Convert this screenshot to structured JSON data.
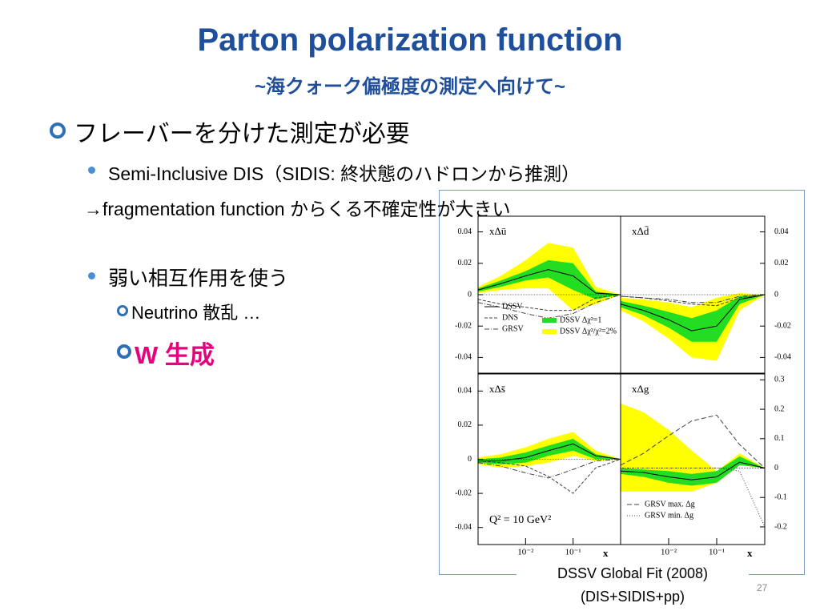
{
  "slide": {
    "title": "Parton polarization function",
    "subtitle": "~海クォーク偏極度の測定へ向けて~",
    "bullet_1": "フレーバーを分けた測定が必要",
    "bullet_1_1": "Semi-Inclusive DIS（SIDIS: 終状態のハドロンから推測）",
    "bullet_1_2": "→fragmentation function からくる不確定性が大きい",
    "bullet_2": "弱い相互作用を使う",
    "bullet_2_1": "Neutrino 散乱 …",
    "bullet_2_2": "W 生成",
    "caption_1": "DSSV Global Fit (2008)",
    "caption_2": "(DIS+SIDIS+pp)",
    "page_number": "27"
  },
  "chart_data": [
    {
      "type": "line",
      "label": "xΔū",
      "log_x": true,
      "x": [
        0.001,
        0.003,
        0.01,
        0.03,
        0.1,
        0.3,
        1
      ],
      "xlim": [
        0.001,
        1
      ],
      "xticks": [],
      "ylim": [
        -0.05,
        0.05
      ],
      "yticks": [
        0.04,
        0.02,
        0,
        -0.02,
        -0.04
      ],
      "bands": [
        {
          "name": "DSSV Δχ²/χ²=2%",
          "color": "#ffff00",
          "lower": [
            0.001,
            0.003,
            0.004,
            0.004,
            -0.01,
            -0.006,
            0
          ],
          "upper": [
            0.005,
            0.012,
            0.022,
            0.033,
            0.03,
            0.005,
            0
          ]
        },
        {
          "name": "DSSV Δχ²=1",
          "color": "#22dd22",
          "lower": [
            0.002,
            0.005,
            0.009,
            0.011,
            0.003,
            -0.003,
            0
          ],
          "upper": [
            0.004,
            0.009,
            0.015,
            0.022,
            0.02,
            0.002,
            0
          ]
        }
      ],
      "series": [
        {
          "name": "DSSV",
          "color": "#000000",
          "dash": "none",
          "values": [
            0.003,
            0.007,
            0.012,
            0.016,
            0.012,
            0.001,
            0
          ]
        },
        {
          "name": "DNS",
          "color": "#444444",
          "dash": "4 2",
          "values": [
            -0.003,
            -0.006,
            -0.008,
            -0.01,
            -0.01,
            -0.002,
            0
          ]
        },
        {
          "name": "GRSV",
          "color": "#444444",
          "dash": "6 2 1 2",
          "values": [
            -0.005,
            -0.008,
            -0.012,
            -0.015,
            -0.012,
            -0.005,
            0
          ]
        }
      ]
    },
    {
      "type": "line",
      "label": "xΔd̄",
      "log_x": true,
      "x": [
        0.001,
        0.003,
        0.01,
        0.03,
        0.1,
        0.3,
        1
      ],
      "xlim": [
        0.001,
        1
      ],
      "xticks": [],
      "ylim": [
        -0.05,
        0.05
      ],
      "yticks": [
        0.04,
        0.02,
        0,
        -0.02,
        -0.04
      ],
      "bands": [
        {
          "color": "#ffff00",
          "lower": [
            -0.01,
            -0.017,
            -0.028,
            -0.04,
            -0.042,
            -0.01,
            0
          ],
          "upper": [
            -0.002,
            -0.003,
            -0.005,
            -0.008,
            -0.002,
            0.001,
            0
          ]
        },
        {
          "color": "#22dd22",
          "lower": [
            -0.008,
            -0.013,
            -0.021,
            -0.03,
            -0.03,
            -0.006,
            0
          ],
          "upper": [
            -0.004,
            -0.007,
            -0.011,
            -0.015,
            -0.01,
            -0.001,
            0
          ]
        }
      ],
      "series": [
        {
          "color": "#000000",
          "dash": "none",
          "values": [
            -0.006,
            -0.01,
            -0.016,
            -0.023,
            -0.02,
            -0.003,
            0
          ]
        },
        {
          "color": "#444444",
          "dash": "4 2",
          "values": [
            -0.001,
            -0.002,
            -0.004,
            -0.006,
            -0.007,
            -0.002,
            0
          ]
        },
        {
          "color": "#444444",
          "dash": "6 2 1 2",
          "values": [
            -0.001,
            -0.002,
            -0.003,
            -0.005,
            -0.005,
            -0.001,
            0
          ]
        }
      ]
    },
    {
      "type": "line",
      "label": "xΔs̄",
      "log_x": true,
      "annotation": "Q² = 10 GeV²",
      "xlabel": "x",
      "x": [
        0.001,
        0.003,
        0.01,
        0.03,
        0.1,
        0.3,
        1
      ],
      "xlim": [
        0.001,
        1
      ],
      "xticks": [
        {
          "value": 0.01,
          "label": "10⁻²"
        },
        {
          "value": 0.1,
          "label": "10⁻¹"
        }
      ],
      "ylim": [
        -0.05,
        0.05
      ],
      "yticks": [
        0.04,
        0.02,
        0,
        -0.02,
        -0.04
      ],
      "bands": [
        {
          "color": "#ffff00",
          "lower": [
            -0.003,
            -0.005,
            -0.004,
            -0.002,
            0.002,
            -0.001,
            0
          ],
          "upper": [
            0.001,
            0.003,
            0.007,
            0.012,
            0.016,
            0.005,
            0
          ]
        },
        {
          "color": "#22dd22",
          "lower": [
            -0.002,
            -0.003,
            -0.002,
            0.002,
            0.005,
            0,
            0
          ],
          "upper": [
            0,
            0.001,
            0.004,
            0.008,
            0.012,
            0.003,
            0
          ]
        }
      ],
      "series": [
        {
          "color": "#000000",
          "dash": "none",
          "values": [
            -0.001,
            -0.001,
            0.001,
            0.005,
            0.009,
            0.002,
            0
          ]
        },
        {
          "color": "#444444",
          "dash": "4 2",
          "values": [
            -0.001,
            -0.002,
            -0.004,
            -0.01,
            -0.02,
            -0.005,
            0
          ]
        },
        {
          "color": "#444444",
          "dash": "6 2 1 2",
          "values": [
            -0.002,
            -0.004,
            -0.008,
            -0.011,
            -0.006,
            -0.001,
            0
          ]
        }
      ]
    },
    {
      "type": "line",
      "label": "xΔg",
      "log_x": true,
      "xlabel": "x",
      "x": [
        0.001,
        0.003,
        0.01,
        0.03,
        0.1,
        0.3,
        1
      ],
      "xlim": [
        0.001,
        1
      ],
      "xticks": [
        {
          "value": 0.01,
          "label": "10⁻²"
        },
        {
          "value": 0.1,
          "label": "10⁻¹"
        }
      ],
      "ylim": [
        -0.26,
        0.32
      ],
      "yticks": [
        0.3,
        0.2,
        0.1,
        0,
        -0.1,
        -0.2
      ],
      "bands": [
        {
          "color": "#ffff00",
          "lower": [
            -0.08,
            -0.08,
            -0.08,
            -0.08,
            -0.05,
            0.01,
            0
          ],
          "upper": [
            0.22,
            0.19,
            0.13,
            0.06,
            -0.01,
            0.05,
            0
          ]
        },
        {
          "color": "#22dd22",
          "lower": [
            -0.02,
            -0.03,
            -0.05,
            -0.06,
            -0.05,
            0.01,
            0
          ],
          "upper": [
            0,
            -0.005,
            -0.01,
            -0.02,
            -0.01,
            0.04,
            0
          ]
        }
      ],
      "series": [
        {
          "color": "#000000",
          "dash": "none",
          "values": [
            -0.01,
            -0.015,
            -0.03,
            -0.04,
            -0.03,
            0.02,
            0
          ]
        },
        {
          "name": "GRSV max. Δg",
          "color": "#444444",
          "dash": "6 3",
          "values": [
            0.01,
            0.05,
            0.11,
            0.16,
            0.18,
            0.08,
            0
          ]
        },
        {
          "name": "GRSV min. Δg",
          "color": "#444444",
          "dash": "1 2",
          "values": [
            0,
            0,
            0,
            0,
            0,
            -0.01,
            -0.2
          ]
        }
      ]
    }
  ]
}
